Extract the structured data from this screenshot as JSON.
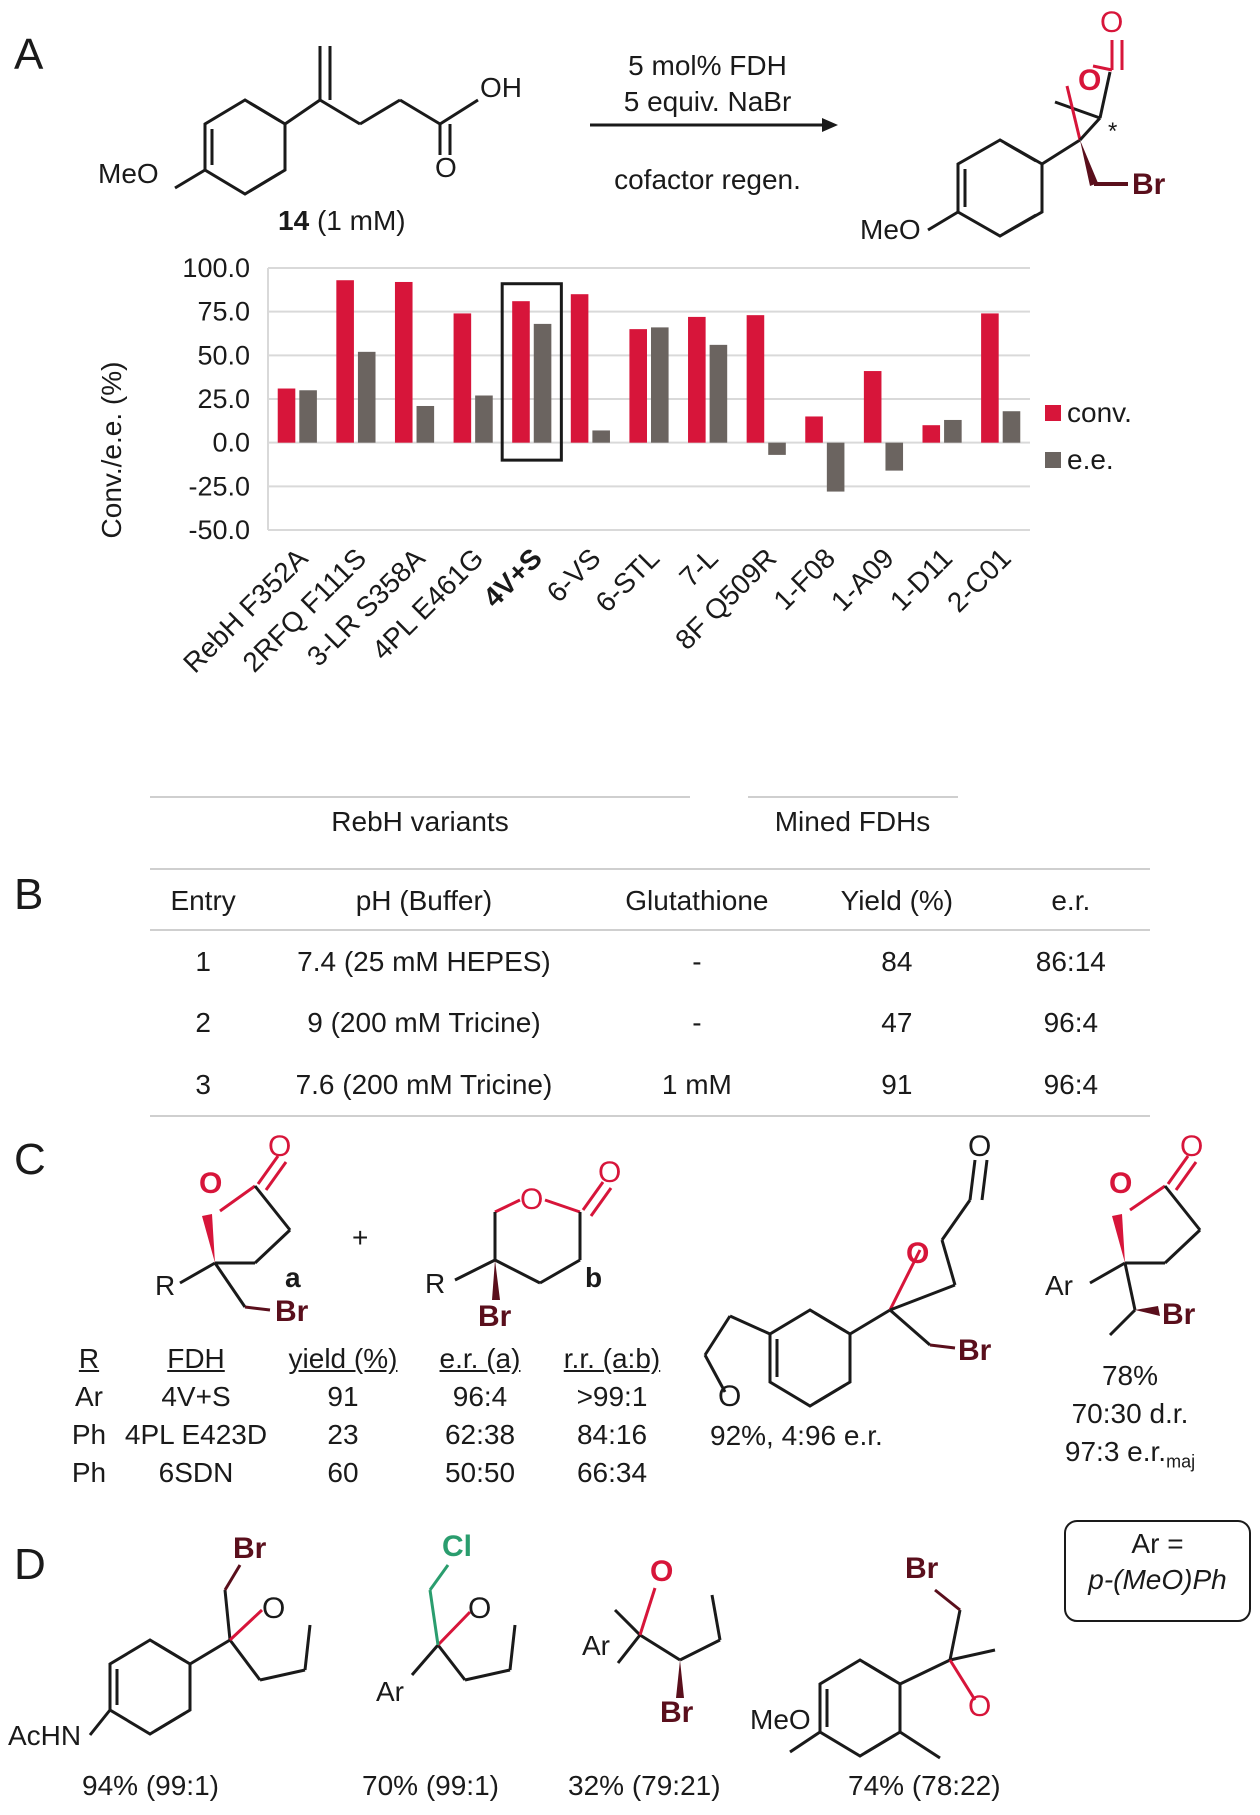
{
  "colors": {
    "conv": "#d7153a",
    "ee": "#6b6460",
    "red": "#d7153a",
    "darkred": "#5a0f1c",
    "green": "#2a9d6e",
    "grid": "#d9d9d9"
  },
  "panelA": {
    "label": "A",
    "compound": "14",
    "compound_conc": "(1 mM)",
    "reagents": [
      "5 mol% FDH",
      "5 equiv. NaBr"
    ],
    "below_arrow": "cofactor regen.",
    "sm_labels": {
      "MeO": "MeO",
      "OH": "OH",
      "O": "O"
    },
    "pd_labels": {
      "O_ring": "O",
      "O_carbonyl": "O",
      "star": "*",
      "Br": "Br",
      "MeO": "MeO"
    }
  },
  "chart_data": {
    "type": "bar",
    "ylabel": "Conv./e.e.  (%)",
    "ylim": [
      -50,
      100
    ],
    "yticks": [
      "100.0",
      "75.0",
      "50.0",
      "25.0",
      "0.0",
      "-25.0",
      "-50.0"
    ],
    "grid": true,
    "legend_placement": "right",
    "categories": [
      "RebH F352A",
      "2RFQ F111S",
      "3-LR S358A",
      "4PL E461G",
      "4V+S",
      "6-VS",
      "6-STL",
      "7-L",
      "8F Q509R",
      "1-F08",
      "1-A09",
      "1-D11",
      "2-C01"
    ],
    "highlighted": "4V+S",
    "series": [
      {
        "name": "conv.",
        "values": [
          31,
          93,
          92,
          74,
          81,
          85,
          65,
          72,
          73,
          15,
          41,
          10,
          74
        ]
      },
      {
        "name": "e.e.",
        "values": [
          30,
          52,
          21,
          27,
          68,
          7,
          66,
          56,
          -7,
          -28,
          -16,
          13,
          18
        ]
      }
    ],
    "groups": [
      {
        "label": "RebH variants"
      },
      {
        "label": "Mined FDHs"
      }
    ]
  },
  "panelB": {
    "label": "B",
    "headers": [
      "Entry",
      "pH (Buffer)",
      "Glutathione",
      "Yield (%)",
      "e.r."
    ],
    "rows": [
      [
        "1",
        "7.4 (25 mM HEPES)",
        "-",
        "84",
        "86:14"
      ],
      [
        "2",
        "9 (200 mM Tricine)",
        "-",
        "47",
        "96:4"
      ],
      [
        "3",
        "7.6 (200 mM Tricine)",
        "1 mM",
        "91",
        "96:4"
      ]
    ]
  },
  "panelC": {
    "label": "C",
    "plus": "+",
    "struct_a": {
      "R": "R",
      "O_ring": "O",
      "O_carbonyl": "O",
      "Br": "Br",
      "tag": "a"
    },
    "struct_b": {
      "R": "R",
      "O_ring": "O",
      "O_carbonyl": "O",
      "Br": "Br",
      "tag": "b"
    },
    "table_headers": [
      "R",
      "FDH",
      "yield (%)",
      "e.r. (a)",
      "r.r. (a:b)"
    ],
    "table_rows": [
      [
        "Ar",
        "4V+S",
        "91",
        "96:4",
        ">99:1"
      ],
      [
        "Ph",
        "4PL E423D",
        "23",
        "62:38",
        "84:16"
      ],
      [
        "Ph",
        "6SDN",
        "60",
        "50:50",
        "66:34"
      ]
    ],
    "benzofuran": {
      "O_ring": "O",
      "O_carbonyl": "O",
      "O_furan": "O",
      "Br": "Br",
      "caption": "92%, 4:96 e.r."
    },
    "methyl": {
      "Ar": "Ar",
      "O_ring": "O",
      "O_carbonyl": "O",
      "Br": "Br",
      "caption1": "78%",
      "caption2": "70:30 d.r.",
      "caption3": "97:3 e.r.",
      "caption3_sub": "maj"
    }
  },
  "panelD": {
    "label": "D",
    "compounds": [
      {
        "Br": "Br",
        "O": "O",
        "sub": "AcHN",
        "caption": "94% (99:1)"
      },
      {
        "Cl": "Cl",
        "O": "O",
        "Ar": "Ar",
        "caption": "70% (99:1)"
      },
      {
        "O": "O",
        "Ar": "Ar",
        "Br": "Br",
        "caption": "32% (79:21)"
      },
      {
        "Br": "Br",
        "O": "O",
        "MeO": "MeO",
        "caption": "74% (78:22)"
      }
    ],
    "ar_box": {
      "line1": "Ar =",
      "line2": "p-(MeO)Ph"
    }
  }
}
